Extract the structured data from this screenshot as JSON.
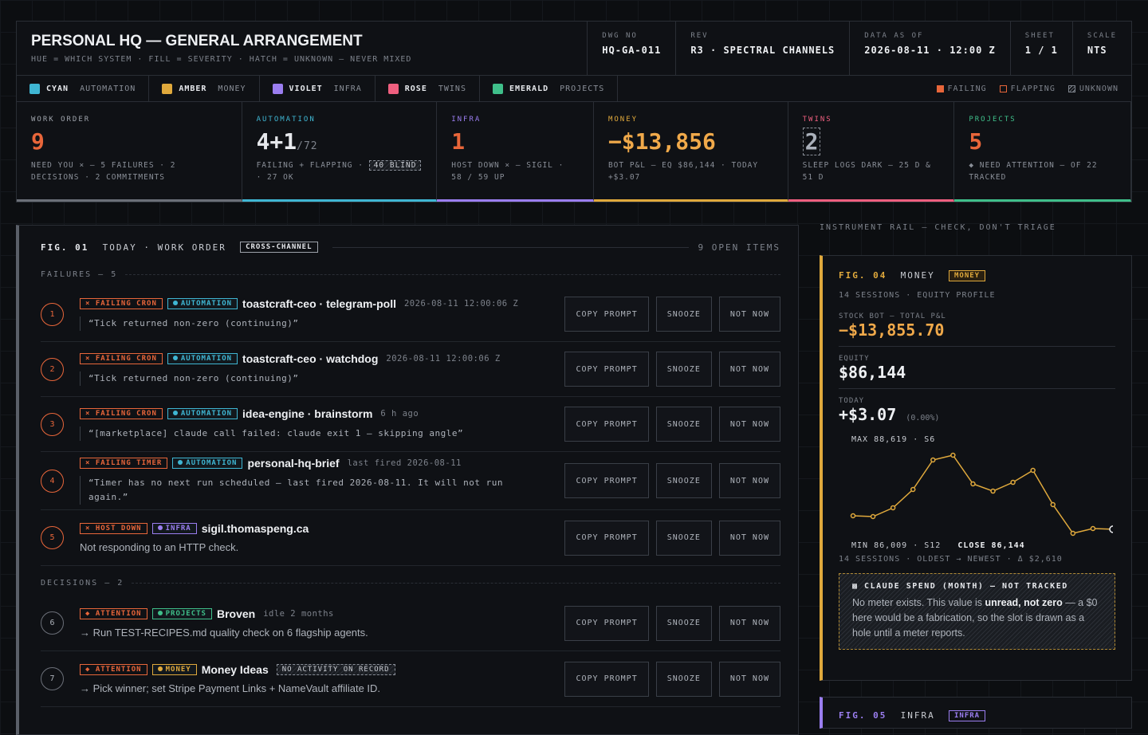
{
  "header": {
    "title": "PERSONAL HQ — GENERAL ARRANGEMENT",
    "subtitle": "HUE = WHICH SYSTEM · FILL = SEVERITY · HATCH = UNKNOWN — NEVER MIXED",
    "meta": [
      {
        "label": "DWG NO",
        "value": "HQ-GA-011"
      },
      {
        "label": "REV",
        "value": "R3 · SPECTRAL CHANNELS"
      },
      {
        "label": "DATA AS OF",
        "value": "2026-08-11 · 12:00 Z"
      },
      {
        "label": "SHEET",
        "value": "1 / 1"
      },
      {
        "label": "SCALE",
        "value": "NTS"
      }
    ]
  },
  "legend": {
    "channels": [
      {
        "name": "CYAN",
        "desc": "AUTOMATION",
        "color": "#3fb6d3"
      },
      {
        "name": "AMBER",
        "desc": "MONEY",
        "color": "#e0a93c"
      },
      {
        "name": "VIOLET",
        "desc": "INFRA",
        "color": "#9b7ef0"
      },
      {
        "name": "ROSE",
        "desc": "TWINS",
        "color": "#ef5f7f"
      },
      {
        "name": "EMERALD",
        "desc": "PROJECTS",
        "color": "#3fbf8a"
      }
    ],
    "states": [
      "FAILING",
      "FLAPPING",
      "UNKNOWN"
    ]
  },
  "kpis": [
    {
      "label": "WORK ORDER",
      "value": "9",
      "note": "NEED YOU × — 5 FAILURES · 2 DECISIONS · 2 COMMITMENTS",
      "color": "#e8663a",
      "line": "#6b6f78"
    },
    {
      "label": "AUTOMATION",
      "value": "4+1",
      "suffix": "/72",
      "note": "FAILING + FLAPPING ·",
      "tag": "40 BLIND",
      "note2": "· 27 OK",
      "color": "#e6e8ec",
      "line": "#3fb6d3"
    },
    {
      "label": "INFRA",
      "value": "1",
      "note": "HOST DOWN × — SIGIL · 58 / 59 UP",
      "color": "#e8663a",
      "line": "#9b7ef0"
    },
    {
      "label": "MONEY",
      "value": "−$13,856",
      "note": "BOT P&L — EQ $86,144 · TODAY +$3.07",
      "color": "#f0a94a",
      "line": "#e0a93c"
    },
    {
      "label": "TWINS",
      "value": "2",
      "note": "SLEEP LOGS DARK — 25 D & 51 D",
      "color": "#aab0ba",
      "line": "#ef5f7f"
    },
    {
      "label": "PROJECTS",
      "value": "5",
      "note": "◆ NEED ATTENTION — OF 22 TRACKED",
      "color": "#e8663a",
      "line": "#3fbf8a"
    }
  ],
  "work_order": {
    "fig": "FIG. 01",
    "title": "TODAY · WORK ORDER",
    "tag": "CROSS-CHANNEL",
    "count": "9 OPEN ITEMS",
    "buttons": [
      "COPY PROMPT",
      "SNOOZE",
      "NOT NOW"
    ],
    "sections": [
      {
        "label": "FAILURES — 5",
        "items": [
          {
            "n": "1",
            "tags": [
              {
                "text": "× FAILING CRON",
                "kind": "fail"
              },
              {
                "text": "AUTOMATION",
                "kind": "#3fb6d3"
              }
            ],
            "title": "toastcraft-ceo · telegram-poll",
            "meta": "2026-08-11 12:00:06 Z",
            "quote": "“Tick returned non-zero (continuing)”"
          },
          {
            "n": "2",
            "tags": [
              {
                "text": "× FAILING CRON",
                "kind": "fail"
              },
              {
                "text": "AUTOMATION",
                "kind": "#3fb6d3"
              }
            ],
            "title": "toastcraft-ceo · watchdog",
            "meta": "2026-08-11 12:00:06 Z",
            "quote": "“Tick returned non-zero (continuing)”"
          },
          {
            "n": "3",
            "tags": [
              {
                "text": "× FAILING CRON",
                "kind": "fail"
              },
              {
                "text": "AUTOMATION",
                "kind": "#3fb6d3"
              }
            ],
            "title": "idea-engine · brainstorm",
            "meta": "6 h ago",
            "quote": "“[marketplace] claude call failed: claude exit 1 — skipping angle”"
          },
          {
            "n": "4",
            "tags": [
              {
                "text": "× FAILING TIMER",
                "kind": "fail"
              },
              {
                "text": "AUTOMATION",
                "kind": "#3fb6d3"
              }
            ],
            "title": "personal-hq-brief",
            "meta": "last fired 2026-08-11",
            "quote": "“Timer has no next run scheduled — last fired 2026-08-11. It will not run again.”"
          },
          {
            "n": "5",
            "tags": [
              {
                "text": "× HOST DOWN",
                "kind": "fail"
              },
              {
                "text": "INFRA",
                "kind": "#9b7ef0"
              }
            ],
            "title": "sigil.thomaspeng.ca",
            "note": "Not responding to an HTTP check."
          }
        ]
      },
      {
        "label": "DECISIONS — 2",
        "items": [
          {
            "n": "6",
            "tags": [
              {
                "text": "◆ ATTENTION",
                "kind": "fail"
              },
              {
                "text": "PROJECTS",
                "kind": "#3fbf8a"
              }
            ],
            "title": "Broven",
            "meta": "idle 2 months",
            "note": "→ Run TEST-RECIPES.md quality check on 6 flagship agents."
          },
          {
            "n": "7",
            "tags": [
              {
                "text": "◆ ATTENTION",
                "kind": "fail"
              },
              {
                "text": "MONEY",
                "kind": "#e0a93c"
              }
            ],
            "title": "Money Ideas",
            "flag": "NO ACTIVITY ON RECORD",
            "note": "→ Pick winner; set Stripe Payment Links + NameVault affiliate ID."
          }
        ]
      }
    ]
  },
  "rail": {
    "heading": "INSTRUMENT RAIL — CHECK, DON'T TRIAGE",
    "money": {
      "fig": "FIG. 04",
      "title": "MONEY",
      "tag": "MONEY",
      "subtitle": "14 SESSIONS · EQUITY PROFILE",
      "pnl_label": "STOCK BOT — TOTAL P&L",
      "pnl": "−$13,855.70",
      "equity_label": "EQUITY",
      "equity": "$86,144",
      "today_label": "TODAY",
      "today": "+$3.07",
      "today_pct": "(0.00%)",
      "chart": {
        "type": "line",
        "max_label": "MAX 88,619 · S6",
        "min_label": "MIN 86,009 · S12",
        "close_label": "CLOSE 86,144",
        "footer": "14 SESSIONS · OLDEST → NEWEST · Δ $2,610",
        "color": "#e0a93c",
        "values": [
          86595,
          86568,
          86861,
          87474,
          88459,
          88619,
          87660,
          87420,
          87713,
          88113,
          86968,
          86009,
          86169,
          86144
        ]
      },
      "spend": {
        "title": "CLAUDE SPEND (MONTH) — NOT TRACKED",
        "parts": [
          "No meter exists. This value is ",
          "unread, not zero",
          " — a $0 here would be a fabrication, so the slot is drawn as a hole until a meter reports."
        ]
      }
    },
    "infra": {
      "fig": "FIG. 05",
      "title": "INFRA",
      "tag": "INFRA"
    }
  }
}
